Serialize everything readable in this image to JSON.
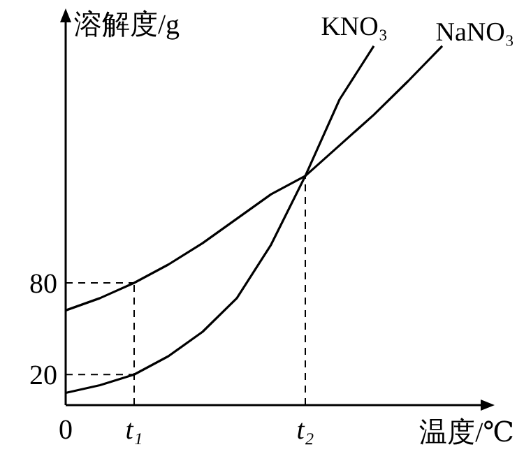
{
  "chart_data": {
    "type": "line",
    "xlabel": "温度/℃",
    "ylabel": "溶解度/g",
    "categories": [
      "0",
      null,
      "t₁",
      null,
      null,
      null,
      null,
      "t₂",
      null,
      null,
      null,
      null
    ],
    "ylim": [
      0,
      256
    ],
    "yticks": [
      20,
      80
    ],
    "line_style": "solid",
    "series": [
      {
        "name": "KNO₃",
        "color": "#000000",
        "values": [
          8,
          13,
          20,
          32,
          48,
          70,
          105,
          150,
          200,
          235,
          null,
          null
        ]
      },
      {
        "name": "NaNO₃",
        "color": "#000000",
        "values": [
          62,
          70,
          80,
          92,
          106,
          122,
          138,
          150,
          170,
          190,
          212,
          235
        ]
      }
    ]
  }
}
